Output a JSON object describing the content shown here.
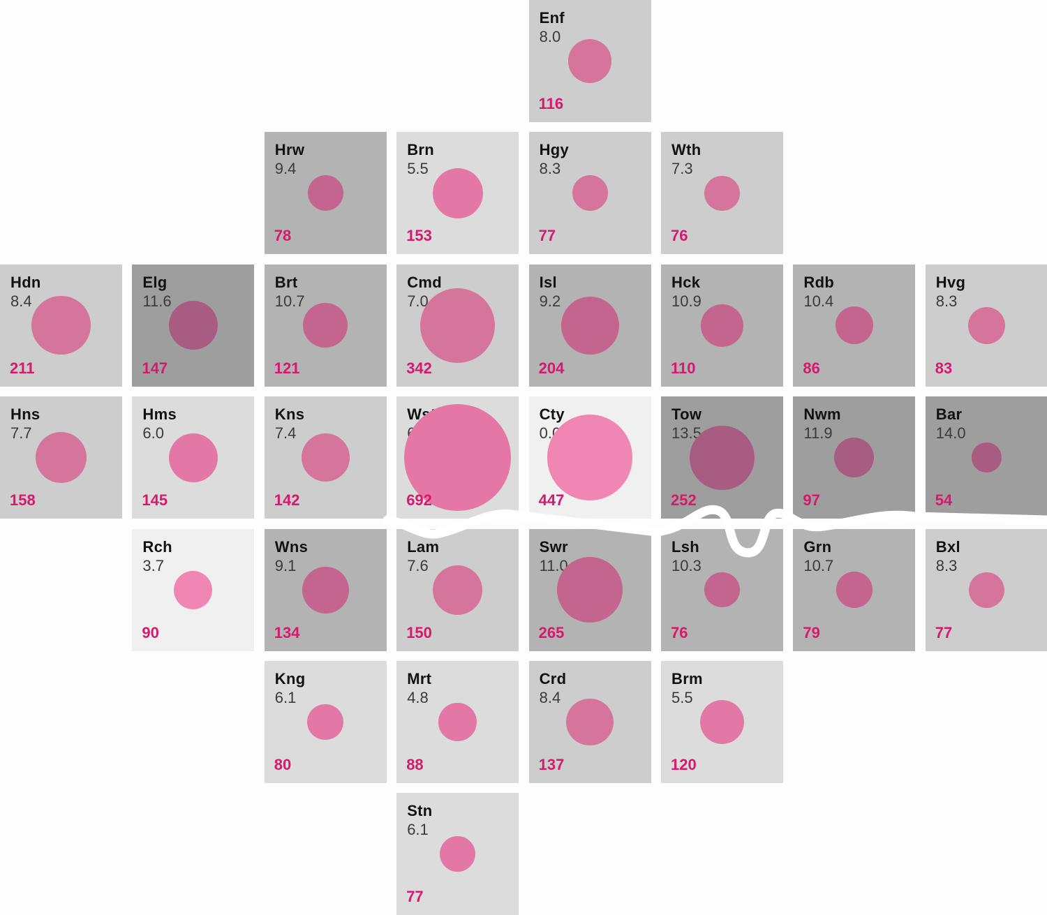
{
  "chart_data": {
    "type": "tile-map",
    "boroughs": [
      {
        "code": "Enf",
        "rate": "8.0",
        "count": 116,
        "row": 0,
        "col": 4
      },
      {
        "code": "Hrw",
        "rate": "9.4",
        "count": 78,
        "row": 1,
        "col": 2
      },
      {
        "code": "Brn",
        "rate": "5.5",
        "count": 153,
        "row": 1,
        "col": 3
      },
      {
        "code": "Hgy",
        "rate": "8.3",
        "count": 77,
        "row": 1,
        "col": 4
      },
      {
        "code": "Wth",
        "rate": "7.3",
        "count": 76,
        "row": 1,
        "col": 5
      },
      {
        "code": "Hdn",
        "rate": "8.4",
        "count": 211,
        "row": 2,
        "col": 0
      },
      {
        "code": "Elg",
        "rate": "11.6",
        "count": 147,
        "row": 2,
        "col": 1
      },
      {
        "code": "Brt",
        "rate": "10.7",
        "count": 121,
        "row": 2,
        "col": 2
      },
      {
        "code": "Cmd",
        "rate": "7.0",
        "count": 342,
        "row": 2,
        "col": 3
      },
      {
        "code": "Isl",
        "rate": "9.2",
        "count": 204,
        "row": 2,
        "col": 4
      },
      {
        "code": "Hck",
        "rate": "10.9",
        "count": 110,
        "row": 2,
        "col": 5
      },
      {
        "code": "Rdb",
        "rate": "10.4",
        "count": 86,
        "row": 2,
        "col": 6
      },
      {
        "code": "Hvg",
        "rate": "8.3",
        "count": 83,
        "row": 2,
        "col": 7
      },
      {
        "code": "Hns",
        "rate": "7.7",
        "count": 158,
        "row": 3,
        "col": 0
      },
      {
        "code": "Hms",
        "rate": "6.0",
        "count": 145,
        "row": 3,
        "col": 1
      },
      {
        "code": "Kns",
        "rate": "7.4",
        "count": 142,
        "row": 3,
        "col": 2
      },
      {
        "code": "Wst",
        "rate": "6.1",
        "count": 692,
        "row": 3,
        "col": 3
      },
      {
        "code": "Cty",
        "rate": "0.0",
        "count": 447,
        "row": 3,
        "col": 4
      },
      {
        "code": "Tow",
        "rate": "13.5",
        "count": 252,
        "row": 3,
        "col": 5
      },
      {
        "code": "Nwm",
        "rate": "11.9",
        "count": 97,
        "row": 3,
        "col": 6
      },
      {
        "code": "Bar",
        "rate": "14.0",
        "count": 54,
        "row": 3,
        "col": 7
      },
      {
        "code": "Rch",
        "rate": "3.7",
        "count": 90,
        "row": 4,
        "col": 1
      },
      {
        "code": "Wns",
        "rate": "9.1",
        "count": 134,
        "row": 4,
        "col": 2
      },
      {
        "code": "Lam",
        "rate": "7.6",
        "count": 150,
        "row": 4,
        "col": 3
      },
      {
        "code": "Swr",
        "rate": "11.0",
        "count": 265,
        "row": 4,
        "col": 4
      },
      {
        "code": "Lsh",
        "rate": "10.3",
        "count": 76,
        "row": 4,
        "col": 5
      },
      {
        "code": "Grn",
        "rate": "10.7",
        "count": 79,
        "row": 4,
        "col": 6
      },
      {
        "code": "Bxl",
        "rate": "8.3",
        "count": 77,
        "row": 4,
        "col": 7
      },
      {
        "code": "Kng",
        "rate": "6.1",
        "count": 80,
        "row": 5,
        "col": 2
      },
      {
        "code": "Mrt",
        "rate": "4.8",
        "count": 88,
        "row": 5,
        "col": 3
      },
      {
        "code": "Crd",
        "rate": "8.4",
        "count": 137,
        "row": 5,
        "col": 4
      },
      {
        "code": "Brm",
        "rate": "5.5",
        "count": 120,
        "row": 5,
        "col": 5
      },
      {
        "code": "Stn",
        "rate": "6.1",
        "count": 77,
        "row": 6,
        "col": 3
      }
    ]
  },
  "colors": {
    "count_text": "#d6196b",
    "shade_lightest": "#f0f0f0",
    "shade_light": "#dcdcdc",
    "shade_mid": "#cdcdcd",
    "shade_dark": "#b3b3b3",
    "shade_darkest": "#9e9e9e",
    "river": "#ffffff"
  }
}
